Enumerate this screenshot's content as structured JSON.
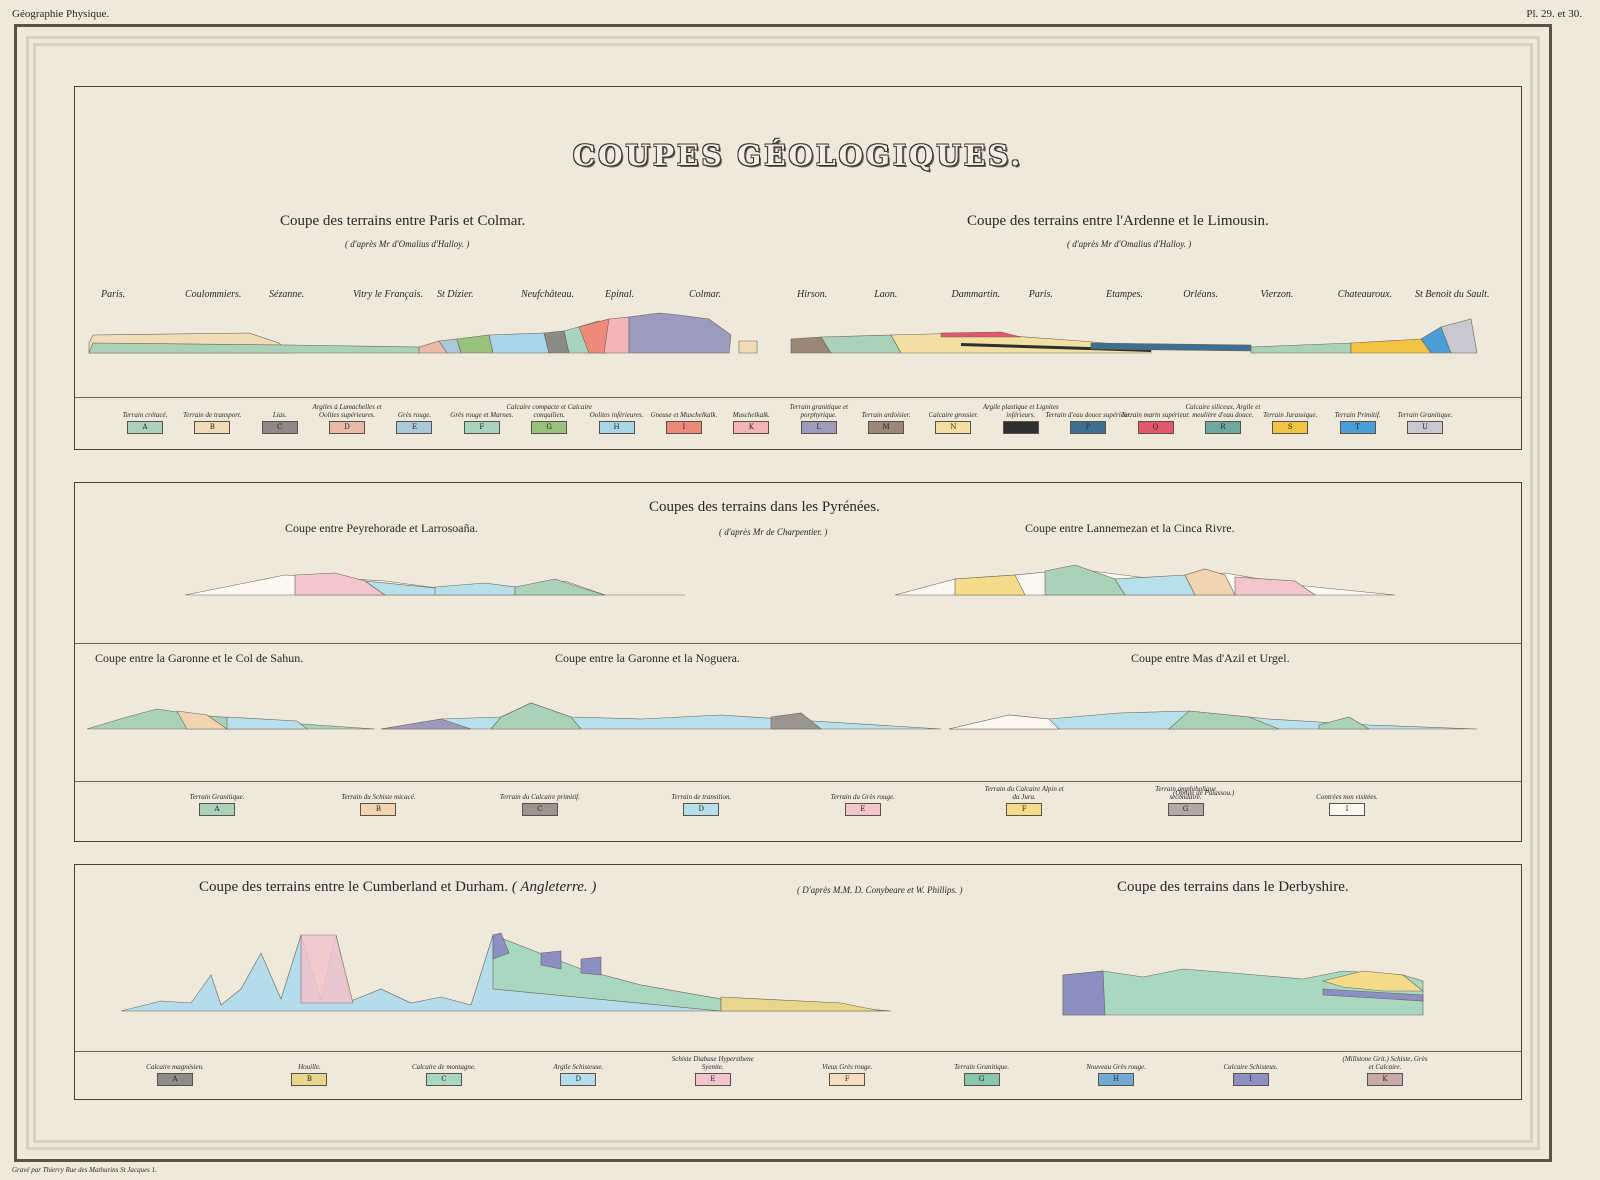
{
  "header": {
    "left": "Géographie Physique.",
    "right": "Pl. 29. et 30."
  },
  "title": "COUPES GÉOLOGIQUES.",
  "footer": "Gravé par Thierry Rue des Mathurins St Jacques 1.",
  "panel1": {
    "left_title": "Coupe des terrains entre Paris et Colmar.",
    "left_subtitle": "( d'après Mr d'Omalius d'Halloy. )",
    "right_title": "Coupe des terrains entre l'Ardenne et le Limousin.",
    "right_subtitle": "( d'après Mr d'Omalius d'Halloy. )",
    "left_places": [
      "Paris.",
      "Coulommiers.",
      "Sézanne.",
      "Vitry le Français.",
      "St Dizier.",
      "Neufchâteau.",
      "Epinal.",
      "Colmar."
    ],
    "right_places": [
      "Hirson.",
      "Laon.",
      "Dammartin.",
      "Paris.",
      "Etampes.",
      "Orléans.",
      "Vierzon.",
      "Chateauroux.",
      "St Benoit du Sault."
    ],
    "legend": [
      {
        "label": "Terrain crétacé.",
        "letter": "A",
        "color": "#a9d2b8"
      },
      {
        "label": "Terrain de transport.",
        "letter": "B",
        "color": "#f1dcb8"
      },
      {
        "label": "Lias.",
        "letter": "C",
        "color": "#8c8a84"
      },
      {
        "label": "Argiles à Lumachelles et Oolites supérieures.",
        "letter": "D",
        "color": "#e8b8a8"
      },
      {
        "label": "Grès rouge.",
        "letter": "E",
        "color": "#a9c8d8"
      },
      {
        "label": "Grès rouge et Marnes.",
        "letter": "F",
        "color": "#a8d4bf"
      },
      {
        "label": "Calcaire compacte et Calcaire conquilien.",
        "letter": "G",
        "color": "#9bc17e"
      },
      {
        "label": "Oolites inférieures.",
        "letter": "H",
        "color": "#a7d6e8"
      },
      {
        "label": "Gneuse et Muschelkalk.",
        "letter": "I",
        "color": "#ef8a7a"
      },
      {
        "label": "Muschelkalk.",
        "letter": "K",
        "color": "#f2b4b8"
      },
      {
        "label": "Terrain granitique et porphyrique.",
        "letter": "L",
        "color": "#9d9bbd"
      },
      {
        "label": "Terrain ardoisier.",
        "letter": "M",
        "color": "#9b8778"
      },
      {
        "label": "Calcaire grossier.",
        "letter": "N",
        "color": "#f3e0a0"
      },
      {
        "label": "Argile plastique et Lignites inférieurs.",
        "letter": "O",
        "color": "#2f2f2f"
      },
      {
        "label": "Terrain d'eau douce supérieur.",
        "letter": "P",
        "color": "#3d6f92"
      },
      {
        "label": "Terrain marin supérieur.",
        "letter": "Q",
        "color": "#e4566c"
      },
      {
        "label": "Calcaire siliceux, Argile et meulière d'eau douce.",
        "letter": "R",
        "color": "#6ea8a0"
      },
      {
        "label": "Terrain Jurassique.",
        "letter": "S",
        "color": "#f3c444"
      },
      {
        "label": "Terrain Primitif.",
        "letter": "T",
        "color": "#4c9ed8"
      },
      {
        "label": "Terrain Granitique.",
        "letter": "U",
        "color": "#c9c7cf"
      }
    ]
  },
  "panel2": {
    "title": "Coupes des terrains dans les Pyrénées.",
    "subtitle": "( d'après Mr de Charpentier. )",
    "cut1_title": "Coupe entre Peyrehorade et Larrosoaña.",
    "cut2_title": "Coupe entre Lannemezan et la Cinca Rivre.",
    "cut3_title": "Coupe entre la Garonne et le Col de Sahun.",
    "cut4_title": "Coupe entre la Garonne et la Noguera.",
    "cut5_title": "Coupe entre Mas d'Azil et Urgel.",
    "legend_top_note": "(Ophite de Palassou.)",
    "legend": [
      {
        "label": "Terrain Granitique.",
        "letter": "A",
        "color": "#a9d2b8"
      },
      {
        "label": "Terrain du Schiste micacé.",
        "letter": "B",
        "color": "#f1d4b0"
      },
      {
        "label": "Terrain du Calcaire primitif.",
        "letter": "C",
        "color": "#9a958e"
      },
      {
        "label": "Terrain de transition.",
        "letter": "D",
        "color": "#b8e0ea"
      },
      {
        "label": "Terrain du Grès rouge.",
        "letter": "E",
        "color": "#f4c6cc"
      },
      {
        "label": "Terrain du Calcaire Alpin et du Jura.",
        "letter": "F",
        "color": "#f6dc8a"
      },
      {
        "label": "Terrain amphibolique secondaire.",
        "letter": "G",
        "color": "#b3a6a6"
      },
      {
        "label": "Contrées non visitées.",
        "letter": "I",
        "color": "#fbf8f1"
      }
    ]
  },
  "panel3": {
    "left_title": "Coupe des terrains entre le Cumberland et Durham.",
    "left_title_suffix": "( Angleterre. )",
    "attribution": "( D'après M.M. D. Conybeare et W. Phillips. )",
    "right_title": "Coupe des terrains dans le Derbyshire.",
    "legend": [
      {
        "label": "Calcaire magnésien.",
        "letter": "A",
        "color": "#8e8b89"
      },
      {
        "label": "Houille.",
        "letter": "B",
        "color": "#e8d68c"
      },
      {
        "label": "Calcaire de montagne.",
        "letter": "C",
        "color": "#a9d8c0"
      },
      {
        "label": "Argile Schisteuse.",
        "letter": "D",
        "color": "#b5dcea"
      },
      {
        "label": "Schiste Diabase Hypersthene Syenite.",
        "letter": "E",
        "color": "#f3c4cc"
      },
      {
        "label": "Vieux Grès rouge.",
        "letter": "F",
        "color": "#f6dcc0"
      },
      {
        "label": "Terrain Granitique.",
        "letter": "G",
        "color": "#88c6ae"
      },
      {
        "label": "Nouveau Grès rouge.",
        "letter": "H",
        "color": "#6fa9d4"
      },
      {
        "label": "Calcaire Schisteux.",
        "letter": "I",
        "color": "#8b8fc2"
      },
      {
        "label": "(Millstone Grit.) Schiste, Grès et Calcaire.",
        "letter": "K",
        "color": "#c8a8a8"
      }
    ]
  }
}
